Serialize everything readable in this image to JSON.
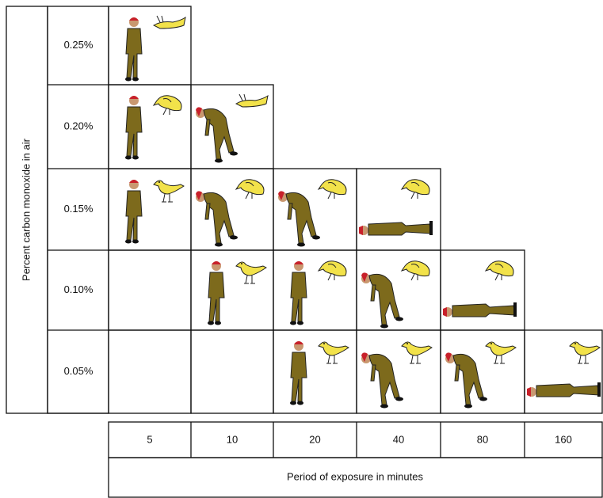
{
  "y_axis_label": "Percent carbon monoxide in air",
  "rows": [
    "0.25%",
    "0.20%",
    "0.15%",
    "0.10%",
    "0.05%"
  ],
  "columns": [
    "5",
    "10",
    "20",
    "40",
    "80",
    "160"
  ],
  "x_axis_label": "Period of exposure in minutes"
}
